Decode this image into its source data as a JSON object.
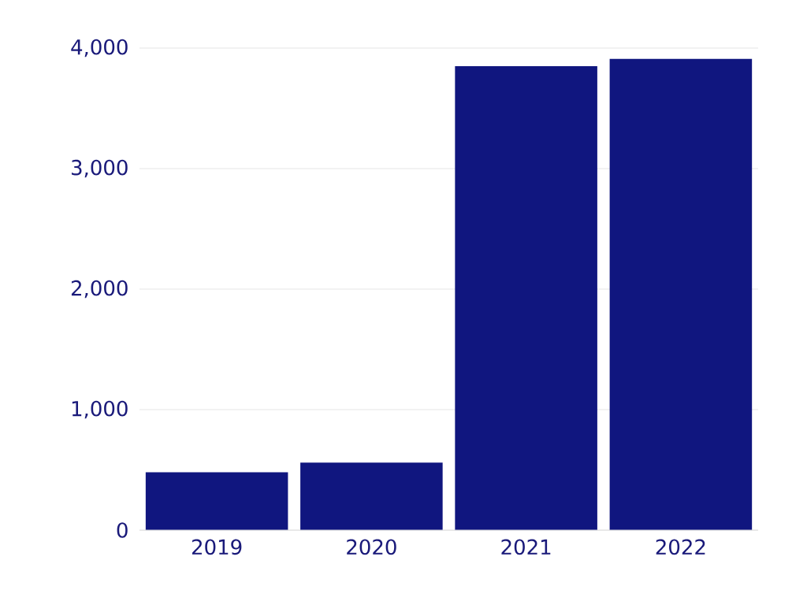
{
  "chart_data": {
    "type": "bar",
    "categories": [
      "2019",
      "2020",
      "2021",
      "2022"
    ],
    "values": [
      480,
      560,
      3850,
      3910
    ],
    "color": "#10167f",
    "ylim": [
      0,
      4000
    ],
    "yticks": [
      0,
      {
        "value": 1000,
        "label": "1,000"
      },
      {
        "value": 2000,
        "label": "2,000"
      },
      {
        "value": 3000,
        "label": "3,000"
      },
      {
        "value": 4000,
        "label": "4,000"
      }
    ],
    "grid": "y"
  }
}
